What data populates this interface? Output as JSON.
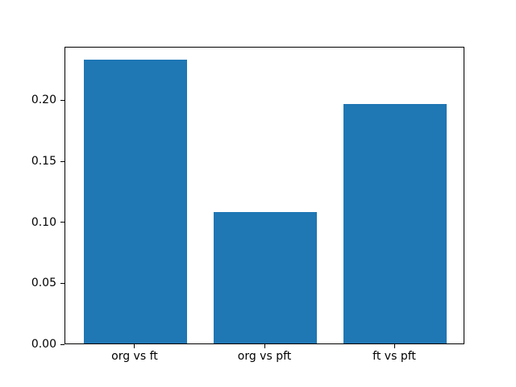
{
  "figure": {
    "background": "#ffffff",
    "axes_edge_color": "#000000",
    "tick_color": "#000000",
    "text_color": "#000000"
  },
  "chart_data": {
    "type": "bar",
    "title": "",
    "xlabel": "",
    "ylabel": "",
    "categories": [
      "org vs ft",
      "org vs pft",
      "ft vs pft"
    ],
    "values": [
      0.2325,
      0.108,
      0.1965
    ],
    "bar_color": "#1f77b4",
    "bar_width": 0.8,
    "xlim": [
      -0.54,
      2.54
    ],
    "ylim": [
      0,
      0.2442
    ],
    "yticks": [
      0.0,
      0.05,
      0.1,
      0.15,
      0.2
    ],
    "ytick_labels": [
      "0.00",
      "0.05",
      "0.10",
      "0.15",
      "0.20"
    ],
    "grid": false,
    "legend": null
  }
}
